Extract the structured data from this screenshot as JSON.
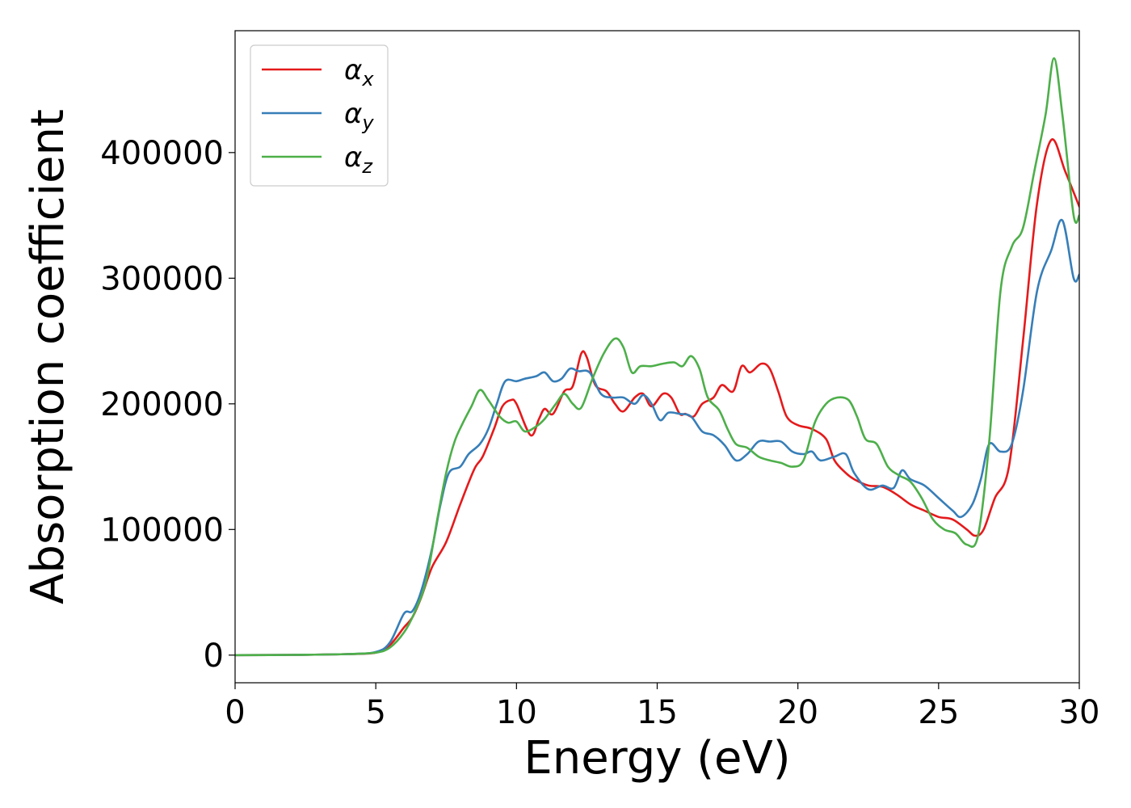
{
  "chart_data": {
    "type": "line",
    "title": "",
    "xlabel": "Energy (eV)",
    "ylabel": "Absorption coefficient",
    "xlim": [
      0,
      30
    ],
    "ylim": [
      -22000,
      497000
    ],
    "xticks": [
      0,
      5,
      10,
      15,
      20,
      25,
      30
    ],
    "yticks": [
      0,
      100000,
      200000,
      300000,
      400000
    ],
    "grid": false,
    "legend_position": "top-left",
    "series": [
      {
        "name": "α_x",
        "label_main": "α",
        "label_sub": "x",
        "color": "#e41a1c",
        "points": [
          [
            0,
            0
          ],
          [
            2,
            200
          ],
          [
            4,
            800
          ],
          [
            5,
            2000
          ],
          [
            5.5,
            8000
          ],
          [
            6,
            22000
          ],
          [
            6.3,
            30000
          ],
          [
            6.6,
            45000
          ],
          [
            7,
            70000
          ],
          [
            7.5,
            90000
          ],
          [
            8,
            120000
          ],
          [
            8.5,
            148000
          ],
          [
            8.8,
            158000
          ],
          [
            9.2,
            180000
          ],
          [
            9.5,
            198000
          ],
          [
            9.8,
            203000
          ],
          [
            10,
            200000
          ],
          [
            10.5,
            175000
          ],
          [
            10.8,
            188000
          ],
          [
            11,
            196000
          ],
          [
            11.3,
            192000
          ],
          [
            11.7,
            210000
          ],
          [
            12,
            214000
          ],
          [
            12.3,
            240000
          ],
          [
            12.5,
            237000
          ],
          [
            12.8,
            215000
          ],
          [
            13.2,
            210000
          ],
          [
            13.5,
            200000
          ],
          [
            13.8,
            194000
          ],
          [
            14.2,
            205000
          ],
          [
            14.5,
            208000
          ],
          [
            14.8,
            198000
          ],
          [
            15.2,
            208000
          ],
          [
            15.5,
            205000
          ],
          [
            15.8,
            192000
          ],
          [
            16,
            192000
          ],
          [
            16.3,
            190000
          ],
          [
            16.6,
            200000
          ],
          [
            17,
            205000
          ],
          [
            17.3,
            215000
          ],
          [
            17.7,
            210000
          ],
          [
            18,
            230000
          ],
          [
            18.3,
            225000
          ],
          [
            18.7,
            232000
          ],
          [
            19,
            228000
          ],
          [
            19.3,
            210000
          ],
          [
            19.6,
            190000
          ],
          [
            20,
            183000
          ],
          [
            20.5,
            180000
          ],
          [
            21,
            172000
          ],
          [
            21.3,
            155000
          ],
          [
            21.7,
            145000
          ],
          [
            22,
            140000
          ],
          [
            22.5,
            135000
          ],
          [
            23,
            134000
          ],
          [
            23.5,
            128000
          ],
          [
            24,
            120000
          ],
          [
            24.5,
            115000
          ],
          [
            25,
            110000
          ],
          [
            25.5,
            108000
          ],
          [
            26,
            100000
          ],
          [
            26.3,
            95000
          ],
          [
            26.6,
            100000
          ],
          [
            27,
            125000
          ],
          [
            27.5,
            150000
          ],
          [
            28,
            250000
          ],
          [
            28.5,
            360000
          ],
          [
            29,
            410000
          ],
          [
            29.5,
            385000
          ],
          [
            30,
            357000
          ]
        ]
      },
      {
        "name": "α_y",
        "label_main": "α",
        "label_sub": "y",
        "color": "#377eb8",
        "points": [
          [
            0,
            0
          ],
          [
            2,
            200
          ],
          [
            4,
            800
          ],
          [
            5,
            2500
          ],
          [
            5.5,
            10000
          ],
          [
            6,
            33000
          ],
          [
            6.3,
            35000
          ],
          [
            6.6,
            50000
          ],
          [
            7,
            85000
          ],
          [
            7.3,
            120000
          ],
          [
            7.6,
            145000
          ],
          [
            8,
            150000
          ],
          [
            8.3,
            160000
          ],
          [
            8.7,
            168000
          ],
          [
            9,
            180000
          ],
          [
            9.3,
            200000
          ],
          [
            9.6,
            218000
          ],
          [
            10,
            218000
          ],
          [
            10.3,
            220000
          ],
          [
            10.7,
            222000
          ],
          [
            11,
            225000
          ],
          [
            11.3,
            218000
          ],
          [
            11.6,
            220000
          ],
          [
            11.9,
            228000
          ],
          [
            12.2,
            226000
          ],
          [
            12.6,
            225000
          ],
          [
            13,
            208000
          ],
          [
            13.4,
            205000
          ],
          [
            13.8,
            205000
          ],
          [
            14.2,
            200000
          ],
          [
            14.5,
            207000
          ],
          [
            14.8,
            200000
          ],
          [
            15.1,
            187000
          ],
          [
            15.4,
            193000
          ],
          [
            15.8,
            192000
          ],
          [
            16.2,
            190000
          ],
          [
            16.6,
            178000
          ],
          [
            17,
            175000
          ],
          [
            17.4,
            167000
          ],
          [
            17.8,
            155000
          ],
          [
            18.2,
            160000
          ],
          [
            18.6,
            170000
          ],
          [
            19,
            170000
          ],
          [
            19.4,
            170000
          ],
          [
            19.8,
            162000
          ],
          [
            20.2,
            160000
          ],
          [
            20.5,
            162000
          ],
          [
            20.8,
            155000
          ],
          [
            21.3,
            158000
          ],
          [
            21.7,
            160000
          ],
          [
            22,
            145000
          ],
          [
            22.5,
            132000
          ],
          [
            23,
            135000
          ],
          [
            23.4,
            133000
          ],
          [
            23.7,
            147000
          ],
          [
            24,
            140000
          ],
          [
            24.5,
            135000
          ],
          [
            25,
            125000
          ],
          [
            25.5,
            115000
          ],
          [
            25.8,
            110000
          ],
          [
            26.2,
            120000
          ],
          [
            26.5,
            140000
          ],
          [
            26.8,
            168000
          ],
          [
            27.2,
            162000
          ],
          [
            27.6,
            168000
          ],
          [
            28,
            210000
          ],
          [
            28.5,
            290000
          ],
          [
            29,
            322000
          ],
          [
            29.4,
            346000
          ],
          [
            29.8,
            300000
          ],
          [
            30,
            303000
          ]
        ]
      },
      {
        "name": "α_z",
        "label_main": "α",
        "label_sub": "z",
        "color": "#4daf4a",
        "points": [
          [
            0,
            0
          ],
          [
            2,
            200
          ],
          [
            4,
            800
          ],
          [
            5,
            2000
          ],
          [
            5.5,
            6000
          ],
          [
            6,
            18000
          ],
          [
            6.4,
            35000
          ],
          [
            6.8,
            60000
          ],
          [
            7.2,
            110000
          ],
          [
            7.5,
            145000
          ],
          [
            7.8,
            170000
          ],
          [
            8.1,
            185000
          ],
          [
            8.4,
            198000
          ],
          [
            8.7,
            211000
          ],
          [
            9,
            203000
          ],
          [
            9.4,
            190000
          ],
          [
            9.7,
            185000
          ],
          [
            10,
            186000
          ],
          [
            10.3,
            178000
          ],
          [
            10.7,
            182000
          ],
          [
            11,
            188000
          ],
          [
            11.4,
            200000
          ],
          [
            11.7,
            208000
          ],
          [
            12,
            200000
          ],
          [
            12.3,
            197000
          ],
          [
            12.7,
            220000
          ],
          [
            13.1,
            240000
          ],
          [
            13.5,
            252000
          ],
          [
            13.8,
            245000
          ],
          [
            14.1,
            225000
          ],
          [
            14.4,
            230000
          ],
          [
            14.8,
            230000
          ],
          [
            15.2,
            232000
          ],
          [
            15.6,
            233000
          ],
          [
            15.9,
            230000
          ],
          [
            16.2,
            238000
          ],
          [
            16.5,
            228000
          ],
          [
            16.8,
            205000
          ],
          [
            17.2,
            195000
          ],
          [
            17.5,
            180000
          ],
          [
            17.8,
            168000
          ],
          [
            18.2,
            165000
          ],
          [
            18.6,
            158000
          ],
          [
            19,
            155000
          ],
          [
            19.4,
            153000
          ],
          [
            19.8,
            150000
          ],
          [
            20.2,
            155000
          ],
          [
            20.6,
            185000
          ],
          [
            21,
            200000
          ],
          [
            21.4,
            205000
          ],
          [
            21.8,
            203000
          ],
          [
            22.1,
            190000
          ],
          [
            22.4,
            172000
          ],
          [
            22.8,
            168000
          ],
          [
            23.2,
            150000
          ],
          [
            23.6,
            143000
          ],
          [
            24,
            138000
          ],
          [
            24.4,
            125000
          ],
          [
            24.8,
            108000
          ],
          [
            25.2,
            100000
          ],
          [
            25.6,
            97000
          ],
          [
            26,
            88000
          ],
          [
            26.4,
            95000
          ],
          [
            26.8,
            170000
          ],
          [
            27.2,
            290000
          ],
          [
            27.6,
            325000
          ],
          [
            28,
            340000
          ],
          [
            28.4,
            385000
          ],
          [
            28.8,
            430000
          ],
          [
            29.1,
            475000
          ],
          [
            29.4,
            430000
          ],
          [
            29.8,
            350000
          ],
          [
            30,
            350000
          ]
        ]
      }
    ]
  }
}
